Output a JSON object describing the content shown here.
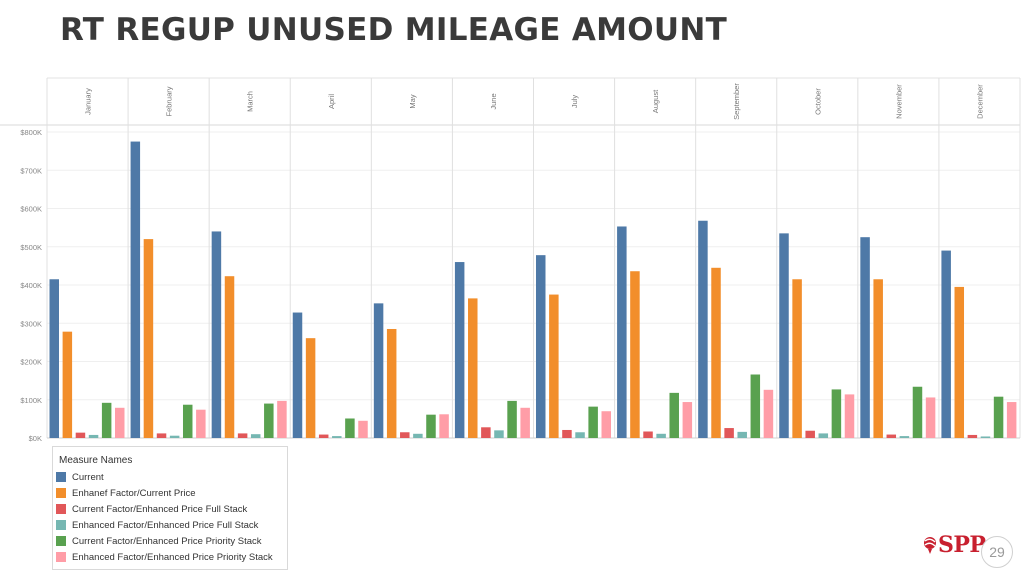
{
  "page": {
    "title": "RT REGUP UNUSED MILEAGE AMOUNT",
    "page_number": "29",
    "logo_text": "SPP"
  },
  "chart_data": {
    "type": "bar",
    "categories": [
      "January",
      "February",
      "March",
      "April",
      "May",
      "June",
      "July",
      "August",
      "September",
      "October",
      "November",
      "December"
    ],
    "y_ticks": [
      "$0K",
      "$100K",
      "$200K",
      "$300K",
      "$400K",
      "$500K",
      "$600K",
      "$700K",
      "$800K"
    ],
    "ylim": [
      0,
      800000
    ],
    "grid": true,
    "legend_title": "Measure Names",
    "legend_position": "bottom-left",
    "series": [
      {
        "name": "Current",
        "color": "#4e79a7",
        "values": [
          415000,
          775000,
          540000,
          328000,
          352000,
          460000,
          478000,
          553000,
          568000,
          535000,
          525000,
          490000
        ]
      },
      {
        "name": "Enhanef Factor/Current Price",
        "color": "#f28e2b",
        "values": [
          278000,
          520000,
          423000,
          261000,
          285000,
          365000,
          375000,
          436000,
          445000,
          415000,
          415000,
          395000
        ]
      },
      {
        "name": "Current Factor/Enhanced Price Full Stack",
        "color": "#e15759",
        "values": [
          14000,
          12000,
          12000,
          9000,
          15000,
          28000,
          21000,
          17000,
          26000,
          19000,
          9000,
          8000
        ]
      },
      {
        "name": "Enhanced Factor/Enhanced Price Full Stack",
        "color": "#76b7b2",
        "values": [
          8000,
          6000,
          10000,
          5000,
          11000,
          20000,
          15000,
          11000,
          16000,
          12000,
          5000,
          4000
        ]
      },
      {
        "name": "Current Factor/Enhanced Price Priority Stack",
        "color": "#59a14f",
        "values": [
          92000,
          87000,
          90000,
          51000,
          61000,
          97000,
          82000,
          118000,
          166000,
          127000,
          134000,
          108000
        ]
      },
      {
        "name": "Enhanced Factor/Enhanced Price Priority Stack",
        "color": "#ff9da7",
        "values": [
          79000,
          74000,
          97000,
          45000,
          62000,
          79000,
          70000,
          94000,
          126000,
          114000,
          106000,
          94000
        ]
      }
    ]
  }
}
